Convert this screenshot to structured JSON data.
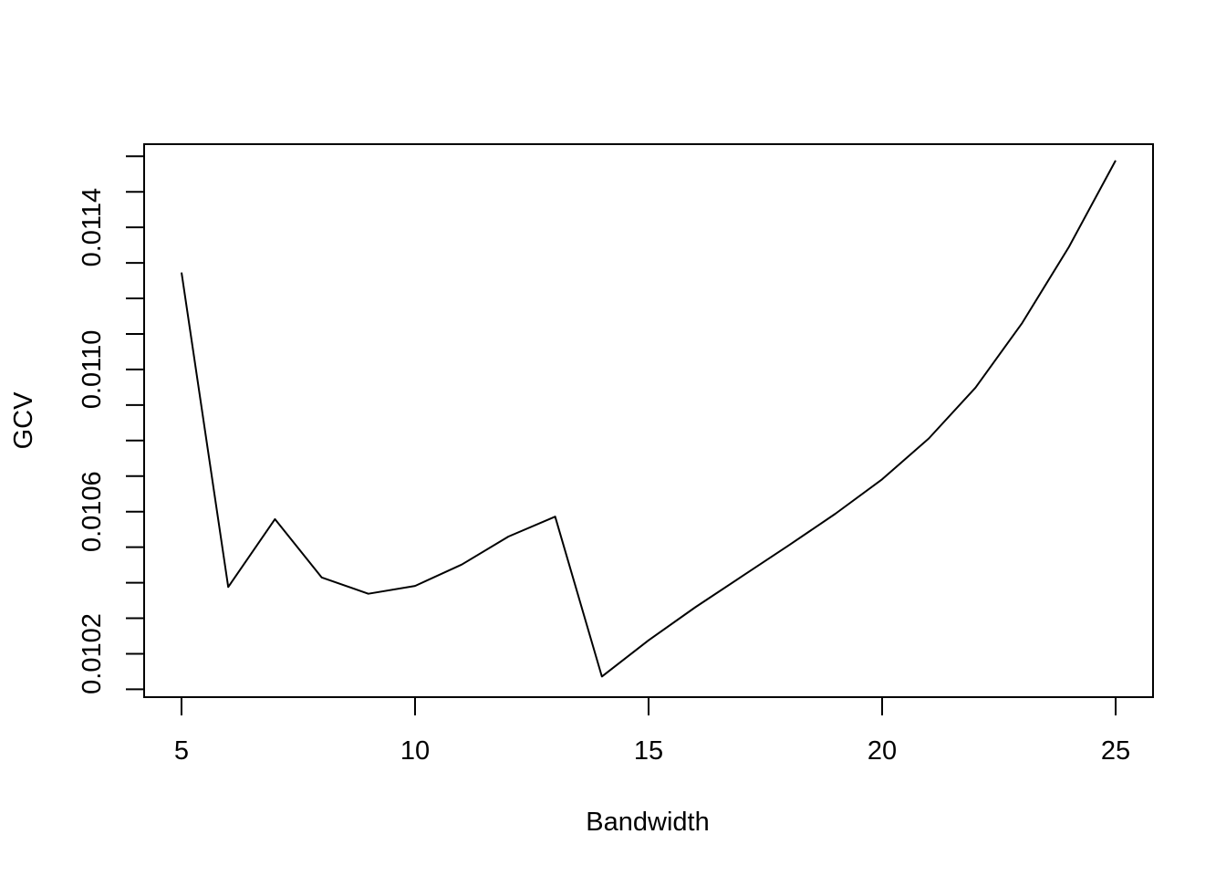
{
  "chart_data": {
    "type": "line",
    "title": "",
    "xlabel": "Bandwidth",
    "ylabel": "GCV",
    "xlim": [
      4.2,
      25.8
    ],
    "ylim": [
      0.010078,
      0.011634
    ],
    "x_ticks": [
      5,
      10,
      15,
      20,
      25
    ],
    "x_tick_labels": [
      "5",
      "10",
      "15",
      "20",
      "25"
    ],
    "y_ticks": [
      0.0101,
      0.0102,
      0.0103,
      0.0104,
      0.0105,
      0.0106,
      0.0107,
      0.0108,
      0.0109,
      0.011,
      0.0111,
      0.0112,
      0.0113,
      0.0114,
      0.0115,
      0.0116
    ],
    "y_tick_labels": [
      "",
      "0.0102",
      "",
      "",
      "",
      "0.0106",
      "",
      "",
      "",
      "0.0110",
      "",
      "",
      "",
      "0.0114",
      "",
      ""
    ],
    "grid": false,
    "line_color": "#000000",
    "series": [
      {
        "x": [
          5,
          6,
          7,
          8,
          9,
          10,
          11,
          12,
          13,
          14,
          15,
          16,
          17,
          18,
          19,
          20,
          21,
          22,
          23,
          24,
          25
        ],
        "y": [
          0.011273,
          0.010388,
          0.010579,
          0.010415,
          0.010369,
          0.010391,
          0.010451,
          0.01053,
          0.010586,
          0.010136,
          0.010238,
          0.010331,
          0.010418,
          0.010505,
          0.010594,
          0.010691,
          0.010806,
          0.010949,
          0.011131,
          0.011345,
          0.011588
        ]
      }
    ]
  }
}
